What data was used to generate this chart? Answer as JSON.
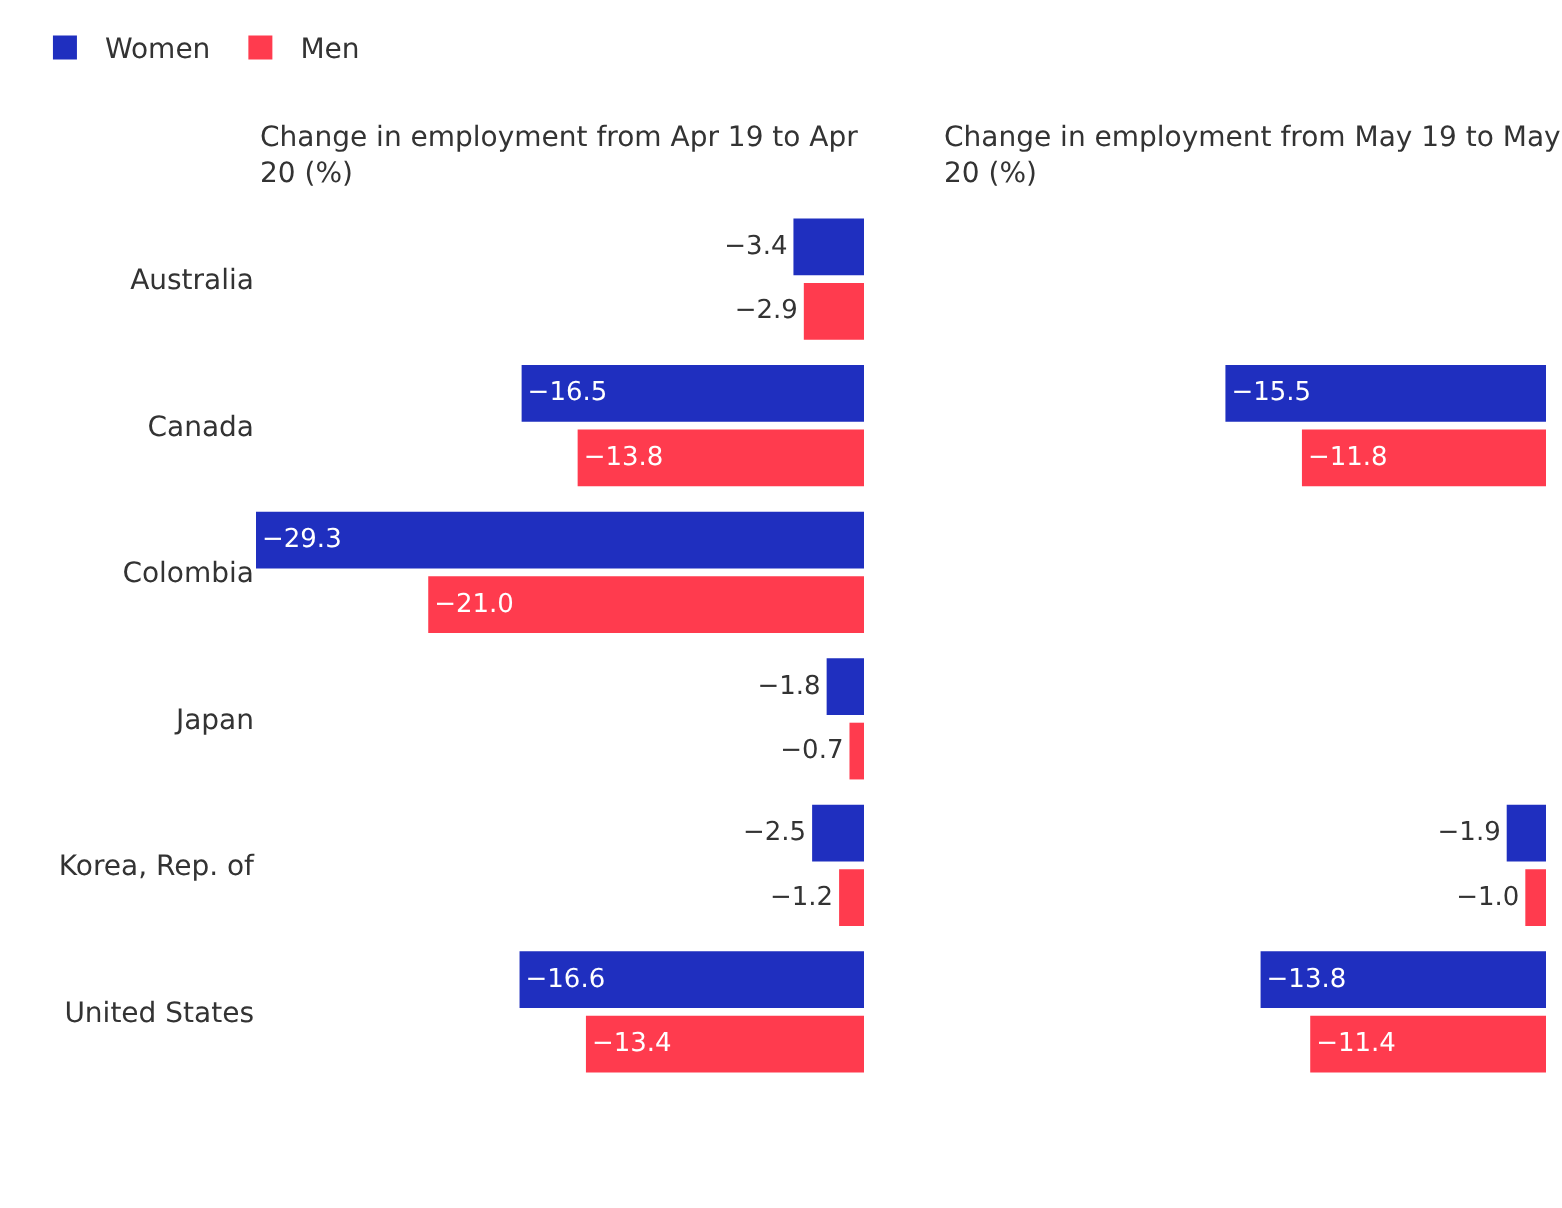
{
  "chart_data": [
    {
      "type": "bar",
      "orientation": "horizontal",
      "title": "Change in employment from Apr 19 to Apr 20 (%)",
      "categories": [
        "Australia",
        "Canada",
        "Colombia",
        "Japan",
        "Korea, Rep. of",
        "United States"
      ],
      "xlim": [
        -29.3,
        0
      ],
      "legend": "top left",
      "tick_labels": "y",
      "series": [
        {
          "name": "Women",
          "color": "#1f2fbf",
          "values": [
            -3.4,
            -16.5,
            -29.3,
            -1.8,
            -2.5,
            -16.6
          ],
          "value_labels": [
            "−3.4",
            "−16.5",
            "−29.3",
            "−1.8",
            "−2.5",
            "−16.6"
          ]
        },
        {
          "name": "Men",
          "color": "#ff3b4e",
          "values": [
            -2.9,
            -13.8,
            -21.0,
            -0.7,
            -1.2,
            -13.4
          ],
          "value_labels": [
            "−2.9",
            "−13.8",
            "−21.0",
            "−0.7",
            "−1.2",
            "−13.4"
          ]
        }
      ]
    },
    {
      "type": "bar",
      "orientation": "horizontal",
      "title": "Change in employment from May 19 to May 20 (%)",
      "categories": [
        "Australia",
        "Canada",
        "Colombia",
        "Japan",
        "Korea, Rep. of",
        "United States"
      ],
      "tick_labels": false,
      "series": [
        {
          "color": "#1f2fbf",
          "values": [
            null,
            -15.5,
            null,
            null,
            -1.9,
            -13.8
          ],
          "value_labels": [
            null,
            "−15.5",
            null,
            null,
            "−1.9",
            "−13.8"
          ]
        },
        {
          "color": "#ff3b4e",
          "values": [
            null,
            -11.8,
            null,
            null,
            -1.0,
            -11.4
          ],
          "value_labels": [
            null,
            "−11.8",
            null,
            null,
            "−1.0",
            "−11.4"
          ]
        }
      ]
    }
  ]
}
